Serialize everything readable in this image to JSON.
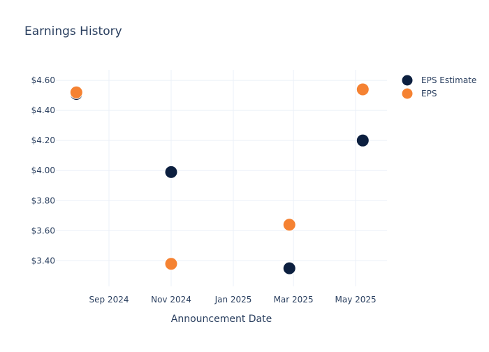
{
  "chart_data": {
    "type": "scatter",
    "title": "Earnings History",
    "xlabel": "Announcement Date",
    "ylabel": "",
    "x_ticks": [
      "Sep 2024",
      "Nov 2024",
      "Jan 2025",
      "Mar 2025",
      "May 2025"
    ],
    "y_ticks": [
      "$3.40",
      "$3.60",
      "$3.80",
      "$4.00",
      "$4.20",
      "$4.40",
      "$4.60"
    ],
    "ylim": [
      3.23,
      4.67
    ],
    "legend_position": "right",
    "grid": true,
    "series": [
      {
        "name": "EPS Estimate",
        "color": "#0c1f3f",
        "points": [
          {
            "x": "2024-07-31",
            "y": 4.51
          },
          {
            "x": "2024-11-01",
            "y": 3.99
          },
          {
            "x": "2025-02-25",
            "y": 3.35
          },
          {
            "x": "2025-05-08",
            "y": 4.2
          }
        ]
      },
      {
        "name": "EPS",
        "color": "#f58232",
        "points": [
          {
            "x": "2024-07-31",
            "y": 4.52
          },
          {
            "x": "2024-11-01",
            "y": 3.38
          },
          {
            "x": "2025-02-25",
            "y": 3.64
          },
          {
            "x": "2025-05-08",
            "y": 4.54
          }
        ]
      }
    ]
  }
}
